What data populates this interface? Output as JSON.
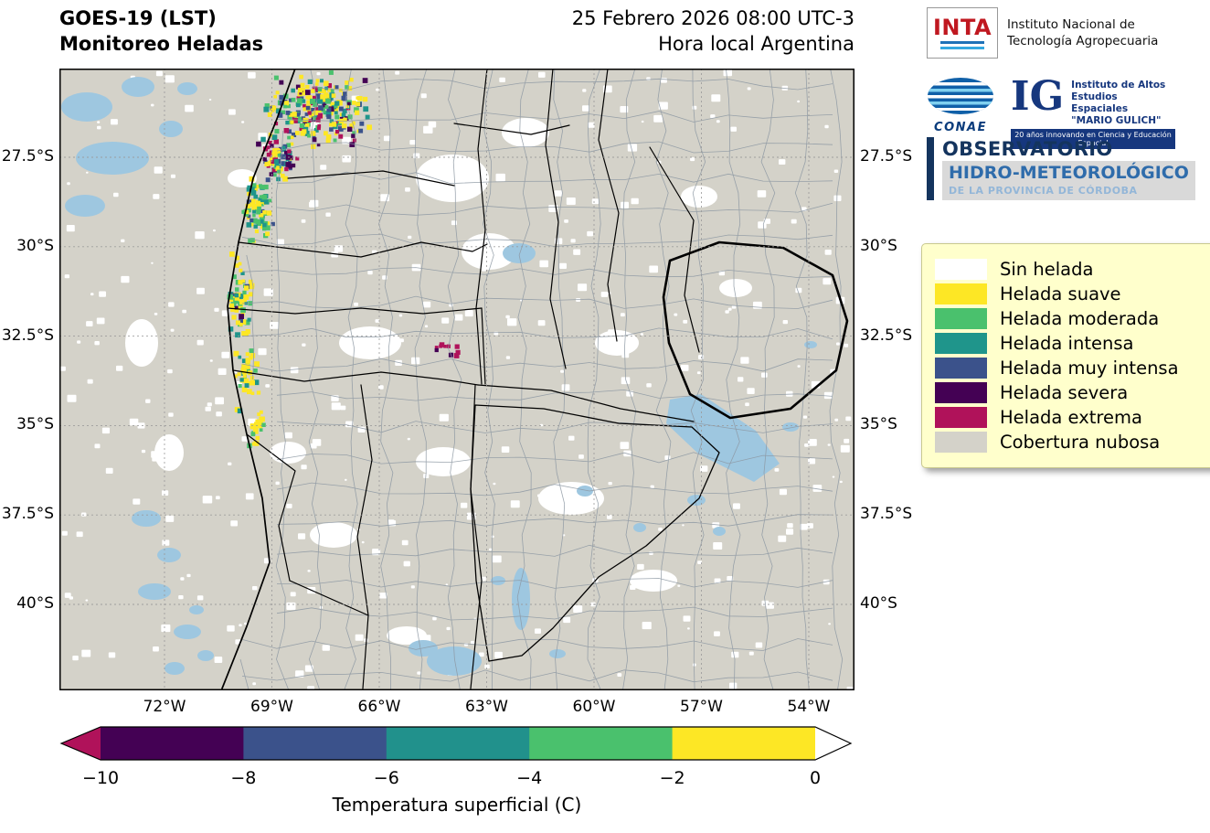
{
  "header": {
    "title_line1": "GOES-19 (LST)",
    "title_line2": "Monitoreo Heladas",
    "datetime_line1": "25 Febrero 2026 08:00 UTC-3",
    "datetime_line2": "Hora local Argentina"
  },
  "logos": {
    "inta": {
      "acronym": "INTA",
      "name_line1": "Instituto Nacional de",
      "name_line2": "Tecnología Agropecuaria"
    },
    "conae": {
      "acronym": "CONAE"
    },
    "gulich": {
      "acronym": "IG",
      "line1": "Instituto de Altos",
      "line2": "Estudios Espaciales",
      "line3": "\"MARIO GULICH\"",
      "banner": "20 años innovando en Ciencia y Educación Espacial"
    },
    "observatorio": {
      "line1": "OBSERVATORIO",
      "line2": "HIDRO-METEOROLÓGICO",
      "line3": "DE LA PROVINCIA DE CÓRDOBA"
    }
  },
  "legend": {
    "background": "#ffffcc",
    "items": [
      {
        "label": "Sin helada",
        "color": "#ffffff"
      },
      {
        "label": "Helada suave",
        "color": "#fde725"
      },
      {
        "label": "Helada moderada",
        "color": "#4ac16d"
      },
      {
        "label": "Helada intensa",
        "color": "#1f958b"
      },
      {
        "label": "Helada muy intensa",
        "color": "#3b528b"
      },
      {
        "label": "Helada severa",
        "color": "#440154"
      },
      {
        "label": "Helada extrema",
        "color": "#b0125a"
      },
      {
        "label": "Cobertura nubosa",
        "color": "#d4d2c9"
      }
    ]
  },
  "map": {
    "lat_ticks": [
      "27.5°S",
      "30°S",
      "32.5°S",
      "35°S",
      "37.5°S",
      "40°S"
    ],
    "lon_ticks": [
      "72°W",
      "69°W",
      "66°W",
      "63°W",
      "60°W",
      "57°W",
      "54°W"
    ],
    "colors": {
      "water": "#9ec7e0",
      "dept_border": "#8d98a3",
      "province_border": "#000000",
      "grid": "#999999"
    }
  },
  "colorbar": {
    "title": "Temperatura superficial (C)",
    "ticks": [
      "−10",
      "−8",
      "−6",
      "−4",
      "−2",
      "0"
    ],
    "segments": [
      "#440154",
      "#3b528b",
      "#21918c",
      "#4ac16d",
      "#fde725"
    ],
    "under_color": "#b0125a",
    "over_color": "#ffffff"
  }
}
